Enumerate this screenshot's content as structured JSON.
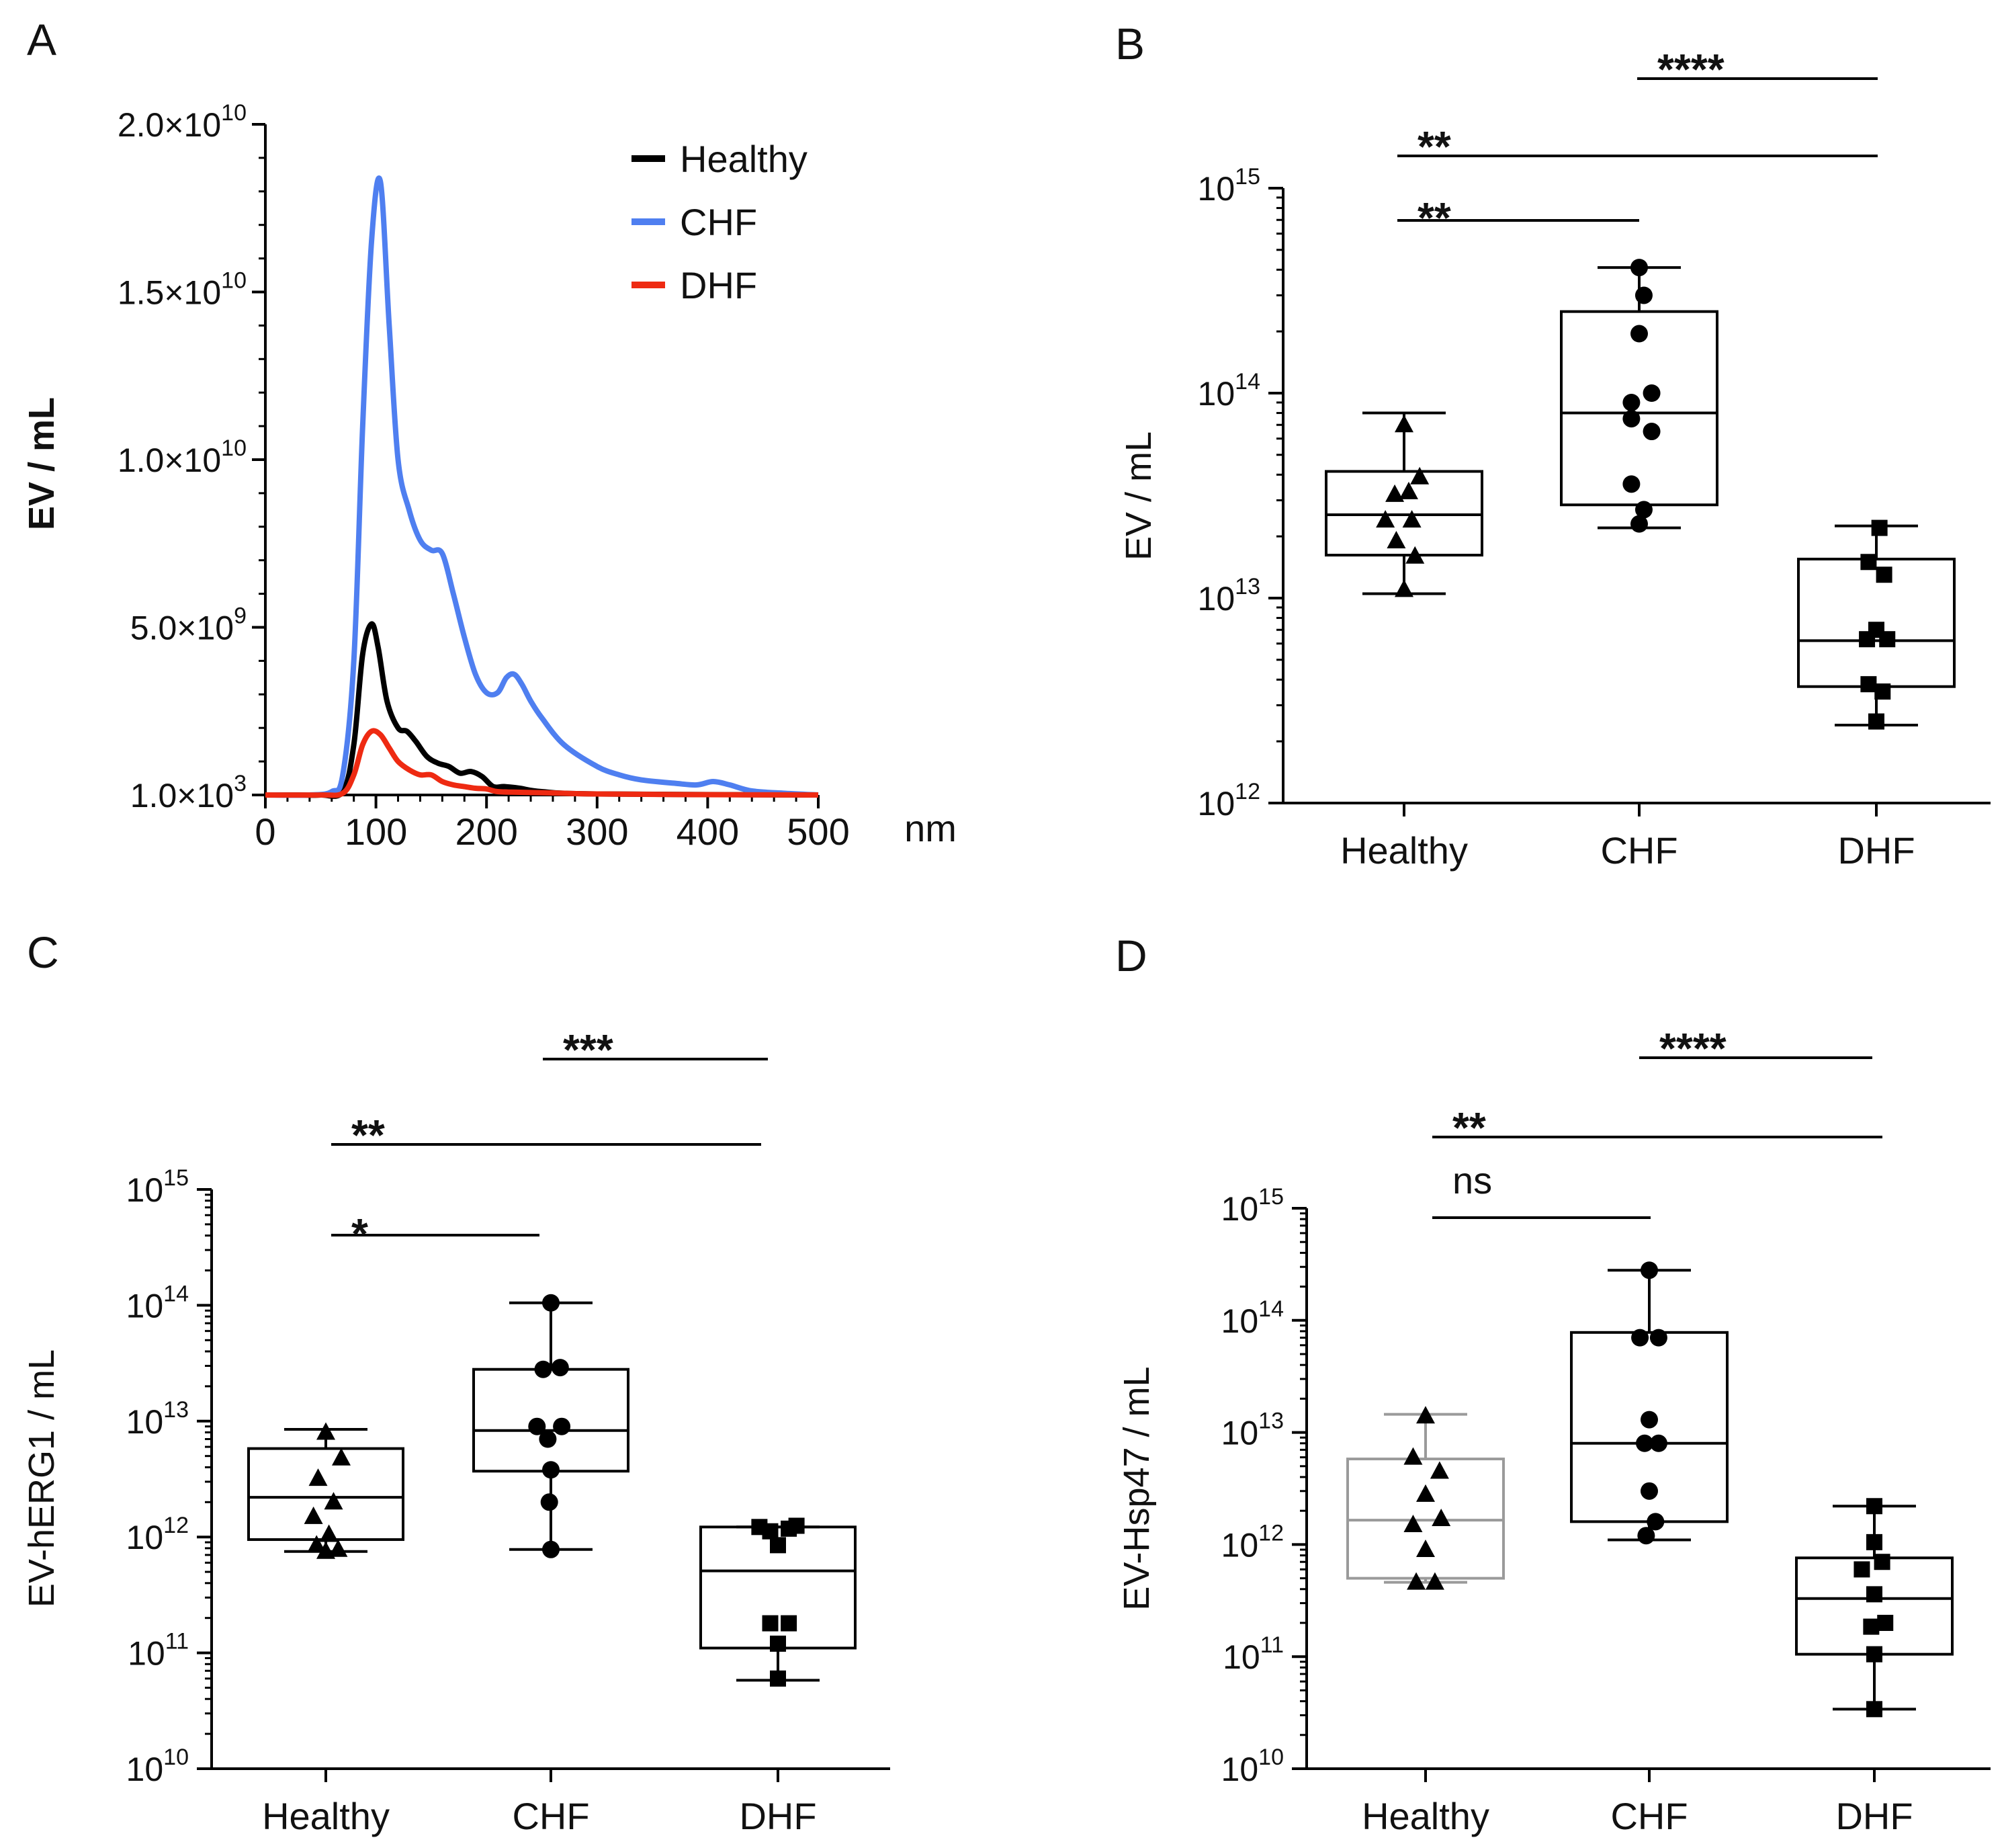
{
  "chart_data": [
    {
      "id": "A",
      "panel_label": "A",
      "type": "line",
      "ylabel": "EV / mL",
      "xlabel": "nm",
      "xlim": [
        0,
        500
      ],
      "ylim": [
        0,
        20000000000
      ],
      "xticks": [
        0,
        100,
        200,
        300,
        400,
        500
      ],
      "yticks": [
        {
          "value": 1000,
          "mant": "1.0×10",
          "exp": "3"
        },
        {
          "value": 5000000000,
          "mant": "5.0×10",
          "exp": "9"
        },
        {
          "value": 10000000000,
          "mant": "1.0×10",
          "exp": "10"
        },
        {
          "value": 15000000000,
          "mant": "1.5×10",
          "exp": "10"
        },
        {
          "value": 20000000000,
          "mant": "2.0×10",
          "exp": "10"
        }
      ],
      "legend_position": "top-right",
      "series": [
        {
          "name": "Healthy",
          "color": "#000000",
          "x": [
            0,
            30,
            50,
            70,
            80,
            88,
            96,
            102,
            110,
            120,
            128,
            136,
            146,
            156,
            166,
            176,
            186,
            196,
            206,
            216,
            230,
            250,
            300,
            500
          ],
          "y": [
            0,
            0,
            0,
            100000000.0,
            1500000000.0,
            4200000000.0,
            5100000000.0,
            4400000000.0,
            2800000000.0,
            2000000000.0,
            1900000000.0,
            1600000000.0,
            1150000000.0,
            950000000.0,
            850000000.0,
            650000000.0,
            700000000.0,
            550000000.0,
            250000000.0,
            250000000.0,
            200000000.0,
            100000000.0,
            30000000.0,
            0
          ]
        },
        {
          "name": "CHF",
          "color": "#4f7ff0",
          "x": [
            0,
            40,
            60,
            70,
            80,
            88,
            96,
            104,
            112,
            120,
            130,
            140,
            150,
            160,
            170,
            180,
            190,
            200,
            210,
            218,
            225,
            232,
            240,
            250,
            270,
            300,
            320,
            340,
            370,
            390,
            405,
            420,
            440,
            470,
            500
          ],
          "y": [
            0,
            0,
            100000000.0,
            600000000.0,
            4000000000.0,
            11000000000.0,
            16500000000.0,
            18300000000.0,
            14000000000.0,
            10000000000.0,
            8500000000.0,
            7600000000.0,
            7300000000.0,
            7200000000.0,
            6000000000.0,
            4700000000.0,
            3600000000.0,
            3050000000.0,
            3050000000.0,
            3500000000.0,
            3600000000.0,
            3300000000.0,
            2800000000.0,
            2300000000.0,
            1500000000.0,
            850000000.0,
            600000000.0,
            450000000.0,
            350000000.0,
            300000000.0,
            400000000.0,
            300000000.0,
            120000000.0,
            50000000.0,
            0
          ]
        },
        {
          "name": "DHF",
          "color": "#ee2a12",
          "x": [
            0,
            50,
            70,
            80,
            88,
            96,
            104,
            112,
            120,
            130,
            140,
            150,
            160,
            170,
            180,
            190,
            200,
            210,
            230,
            260,
            300,
            400,
            500
          ],
          "y": [
            0,
            0,
            50000000.0,
            600000000.0,
            1500000000.0,
            1900000000.0,
            1800000000.0,
            1400000000.0,
            1000000000.0,
            750000000.0,
            600000000.0,
            600000000.0,
            400000000.0,
            300000000.0,
            250000000.0,
            200000000.0,
            180000000.0,
            100000000.0,
            80000000.0,
            60000000.0,
            30000000.0,
            10000000.0,
            0
          ]
        }
      ]
    },
    {
      "id": "B",
      "panel_label": "B",
      "type": "box",
      "ylabel": "EV / mL",
      "scale": "log",
      "ylim_exp": [
        12,
        15
      ],
      "yticks": [
        {
          "exp": 12,
          "label": "10",
          "sup": "12"
        },
        {
          "exp": 13,
          "label": "10",
          "sup": "13"
        },
        {
          "exp": 14,
          "label": "10",
          "sup": "14"
        },
        {
          "exp": 15,
          "label": "10",
          "sup": "15"
        }
      ],
      "categories": [
        "Healthy",
        "CHF",
        "DHF"
      ],
      "groups": [
        {
          "name": "Healthy",
          "marker": "triangle",
          "color": "#000000",
          "stats": {
            "min": 10500000000000.0,
            "q1": 16200000000000.0,
            "median": 25500000000000.0,
            "q3": 41500000000000.0,
            "max": 80000000000000.0
          },
          "points": [
            [
              0.0,
              11000000000000.0
            ],
            [
              0.0,
              70000000000000.0
            ],
            [
              -0.12,
              24000000000000.0
            ],
            [
              0.1,
              39000000000000.0
            ],
            [
              0.03,
              33000000000000.0
            ],
            [
              0.05,
              24000000000000.0
            ],
            [
              -0.05,
              19000000000000.0
            ],
            [
              0.07,
              16000000000000.0
            ],
            [
              -0.06,
              32000000000000.0
            ]
          ]
        },
        {
          "name": "CHF",
          "marker": "circle",
          "color": "#000000",
          "stats": {
            "min": 22000000000000.0,
            "q1": 28500000000000.0,
            "median": 80000000000000.0,
            "q3": 250000000000000.0,
            "max": 410000000000000.0
          },
          "points": [
            [
              0.0,
              410000000000000.0
            ],
            [
              0.03,
              300000000000000.0
            ],
            [
              0.0,
              195000000000000.0
            ],
            [
              0.08,
              100000000000000.0
            ],
            [
              -0.05,
              90000000000000.0
            ],
            [
              -0.05,
              75000000000000.0
            ],
            [
              0.08,
              65000000000000.0
            ],
            [
              -0.05,
              36000000000000.0
            ],
            [
              0.03,
              27000000000000.0
            ],
            [
              0.0,
              23000000000000.0
            ]
          ]
        },
        {
          "name": "DHF",
          "marker": "square",
          "color": "#000000",
          "stats": {
            "min": 2400000000000.0,
            "q1": 3700000000000.0,
            "median": 6200000000000.0,
            "q3": 15500000000000.0,
            "max": 22500000000000.0
          },
          "points": [
            [
              0.02,
              22000000000000.0
            ],
            [
              -0.05,
              15000000000000.0
            ],
            [
              0.05,
              13000000000000.0
            ],
            [
              0.0,
              7000000000000.0
            ],
            [
              -0.06,
              6300000000000.0
            ],
            [
              0.07,
              6300000000000.0
            ],
            [
              -0.05,
              3800000000000.0
            ],
            [
              0.04,
              3500000000000.0
            ],
            [
              0.0,
              2500000000000.0
            ]
          ]
        }
      ],
      "comparisons": [
        {
          "from": "Healthy",
          "to": "CHF",
          "label": "**"
        },
        {
          "from": "Healthy",
          "to": "DHF",
          "label": "**"
        },
        {
          "from": "CHF",
          "to": "DHF",
          "label": "****"
        }
      ]
    },
    {
      "id": "C",
      "panel_label": "C",
      "type": "box",
      "ylabel": "EV-hERG1 / mL",
      "scale": "log",
      "ylim_exp": [
        10,
        15
      ],
      "yticks": [
        {
          "exp": 10,
          "label": "10",
          "sup": "10"
        },
        {
          "exp": 11,
          "label": "10",
          "sup": "11"
        },
        {
          "exp": 12,
          "label": "10",
          "sup": "12"
        },
        {
          "exp": 13,
          "label": "10",
          "sup": "13"
        },
        {
          "exp": 14,
          "label": "10",
          "sup": "14"
        },
        {
          "exp": 15,
          "label": "10",
          "sup": "15"
        }
      ],
      "categories": [
        "Healthy",
        "CHF",
        "DHF"
      ],
      "groups": [
        {
          "name": "Healthy",
          "marker": "triangle",
          "color": "#000000",
          "stats": {
            "min": 750000000000.0,
            "q1": 950000000000.0,
            "median": 2200000000000.0,
            "q3": 5800000000000.0,
            "max": 8500000000000.0
          },
          "points": [
            [
              0.0,
              8000000000000.0
            ],
            [
              0.1,
              4800000000000.0
            ],
            [
              -0.05,
              3200000000000.0
            ],
            [
              0.05,
              2000000000000.0
            ],
            [
              -0.08,
              1500000000000.0
            ],
            [
              0.02,
              1050000000000.0
            ],
            [
              -0.06,
              850000000000.0
            ],
            [
              0.08,
              780000000000.0
            ],
            [
              0.0,
              750000000000.0
            ]
          ]
        },
        {
          "name": "CHF",
          "marker": "circle",
          "color": "#000000",
          "stats": {
            "min": 780000000000.0,
            "q1": 3700000000000.0,
            "median": 8300000000000.0,
            "q3": 28000000000000.0,
            "max": 105000000000000.0
          },
          "points": [
            [
              0.0,
              105000000000000.0
            ],
            [
              -0.05,
              28000000000000.0
            ],
            [
              0.06,
              29000000000000.0
            ],
            [
              -0.09,
              9000000000000.0
            ],
            [
              0.07,
              9000000000000.0
            ],
            [
              -0.02,
              7000000000000.0
            ],
            [
              0.0,
              3800000000000.0
            ],
            [
              -0.01,
              2000000000000.0
            ],
            [
              0.0,
              780000000000.0
            ]
          ]
        },
        {
          "name": "DHF",
          "marker": "square",
          "color": "#000000",
          "stats": {
            "min": 58000000000.0,
            "q1": 110000000000.0,
            "median": 510000000000.0,
            "q3": 1220000000000.0,
            "max": 1220000000000.0
          },
          "points": [
            [
              -0.12,
              1220000000000.0
            ],
            [
              -0.05,
              1120000000000.0
            ],
            [
              0.07,
              1180000000000.0
            ],
            [
              0.12,
              1250000000000.0
            ],
            [
              0.0,
              850000000000.0
            ],
            [
              -0.05,
              180000000000.0
            ],
            [
              0.07,
              180000000000.0
            ],
            [
              0.0,
              120000000000.0
            ],
            [
              0.0,
              60000000000.0
            ]
          ]
        }
      ],
      "comparisons": [
        {
          "from": "Healthy",
          "to": "CHF",
          "label": "*"
        },
        {
          "from": "Healthy",
          "to": "DHF",
          "label": "**"
        },
        {
          "from": "CHF",
          "to": "DHF",
          "label": "***"
        }
      ]
    },
    {
      "id": "D",
      "panel_label": "D",
      "type": "box",
      "ylabel": "EV-Hsp47 / mL",
      "scale": "log",
      "ylim_exp": [
        10,
        15
      ],
      "yticks": [
        {
          "exp": 10,
          "label": "10",
          "sup": "10"
        },
        {
          "exp": 11,
          "label": "10",
          "sup": "11"
        },
        {
          "exp": 12,
          "label": "10",
          "sup": "12"
        },
        {
          "exp": 13,
          "label": "10",
          "sup": "13"
        },
        {
          "exp": 14,
          "label": "10",
          "sup": "14"
        },
        {
          "exp": 15,
          "label": "10",
          "sup": "15"
        }
      ],
      "categories": [
        "Healthy",
        "CHF",
        "DHF"
      ],
      "groups": [
        {
          "name": "Healthy",
          "marker": "triangle",
          "color": "#000000",
          "box_color": "#9a9a9a",
          "stats": {
            "min": 460000000000.0,
            "q1": 500000000000.0,
            "median": 1650000000000.0,
            "q3": 5800000000000.0,
            "max": 14500000000000.0
          },
          "points": [
            [
              0.0,
              14000000000000.0
            ],
            [
              -0.08,
              6000000000000.0
            ],
            [
              0.09,
              4500000000000.0
            ],
            [
              0.0,
              2800000000000.0
            ],
            [
              0.1,
              1700000000000.0
            ],
            [
              -0.08,
              1500000000000.0
            ],
            [
              0.0,
              900000000000.0
            ],
            [
              -0.06,
              460000000000.0
            ],
            [
              0.06,
              460000000000.0
            ]
          ]
        },
        {
          "name": "CHF",
          "marker": "circle",
          "color": "#000000",
          "stats": {
            "min": 1100000000000.0,
            "q1": 1600000000000.0,
            "median": 8000000000000.0,
            "q3": 78000000000000.0,
            "max": 280000000000000.0
          },
          "points": [
            [
              0.0,
              280000000000000.0
            ],
            [
              -0.06,
              70000000000000.0
            ],
            [
              0.06,
              70000000000000.0
            ],
            [
              0.0,
              13000000000000.0
            ],
            [
              -0.03,
              8000000000000.0
            ],
            [
              0.06,
              8000000000000.0
            ],
            [
              0.0,
              3000000000000.0
            ],
            [
              0.04,
              1600000000000.0
            ],
            [
              -0.02,
              1200000000000.0
            ]
          ]
        },
        {
          "name": "DHF",
          "marker": "square",
          "color": "#000000",
          "stats": {
            "min": 34000000000.0,
            "q1": 105000000000.0,
            "median": 330000000000.0,
            "q3": 760000000000.0,
            "max": 2200000000000.0
          },
          "points": [
            [
              0.0,
              2200000000000.0
            ],
            [
              0.0,
              1050000000000.0
            ],
            [
              0.05,
              700000000000.0
            ],
            [
              -0.08,
              600000000000.0
            ],
            [
              0.0,
              360000000000.0
            ],
            [
              0.07,
              200000000000.0
            ],
            [
              -0.02,
              185000000000.0
            ],
            [
              0.0,
              105000000000.0
            ],
            [
              0.0,
              34000000000.0
            ]
          ]
        }
      ],
      "comparisons": [
        {
          "from": "Healthy",
          "to": "CHF",
          "label": "ns"
        },
        {
          "from": "Healthy",
          "to": "DHF",
          "label": "**"
        },
        {
          "from": "CHF",
          "to": "DHF",
          "label": "****"
        }
      ]
    }
  ]
}
